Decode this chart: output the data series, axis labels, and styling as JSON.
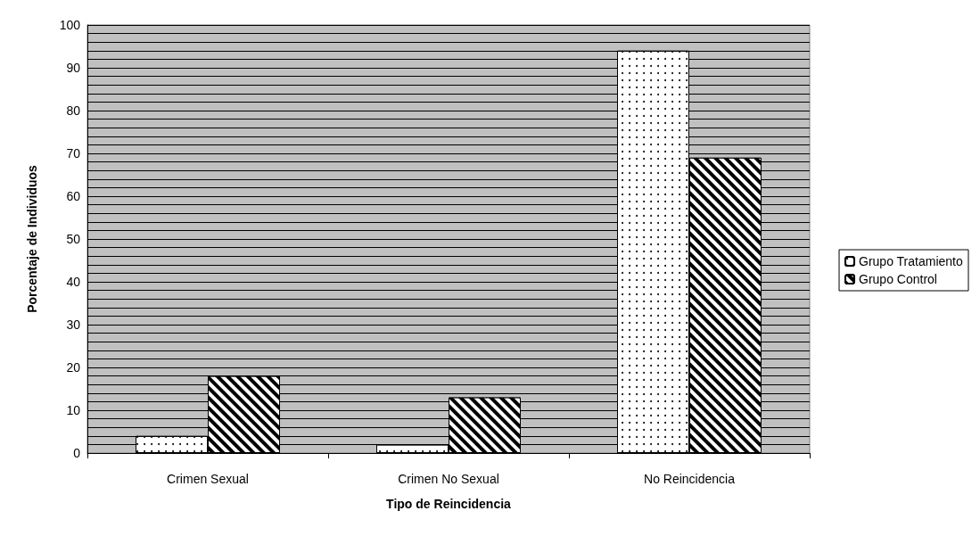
{
  "chart_data": {
    "type": "bar",
    "xlabel": "Tipo de Reincidencia",
    "ylabel": "Porcentaje de Individuos",
    "categories": [
      "Crimen Sexual",
      "Crimen No Sexual",
      "No Reincidencia"
    ],
    "series": [
      {
        "name": "Grupo Tratamiento",
        "color": "#ffffff",
        "values": [
          4,
          2,
          94
        ]
      },
      {
        "name": "Grupo Control",
        "color": "#000000",
        "values": [
          18,
          13,
          69
        ]
      }
    ],
    "ylim": [
      0,
      100
    ],
    "yticks": [
      0,
      {
        "value": 2,
        "label": null
      },
      {
        "value": 4,
        "label": null
      },
      {
        "value": 6,
        "label": null
      },
      {
        "value": 8,
        "label": null
      },
      10,
      {
        "value": 12,
        "label": null
      },
      {
        "value": 14,
        "label": null
      },
      {
        "value": 16,
        "label": null
      },
      {
        "value": 18,
        "label": null
      },
      20,
      {
        "value": 22,
        "label": null
      },
      {
        "value": 24,
        "label": null
      },
      {
        "value": 26,
        "label": null
      },
      {
        "value": 28,
        "label": null
      },
      30,
      {
        "value": 32,
        "label": null
      },
      {
        "value": 34,
        "label": null
      },
      {
        "value": 36,
        "label": null
      },
      {
        "value": 38,
        "label": null
      },
      40,
      {
        "value": 42,
        "label": null
      },
      {
        "value": 44,
        "label": null
      },
      {
        "value": 46,
        "label": null
      },
      {
        "value": 48,
        "label": null
      },
      50,
      {
        "value": 52,
        "label": null
      },
      {
        "value": 54,
        "label": null
      },
      {
        "value": 56,
        "label": null
      },
      {
        "value": 58,
        "label": null
      },
      60,
      {
        "value": 62,
        "label": null
      },
      {
        "value": 64,
        "label": null
      },
      {
        "value": 66,
        "label": null
      },
      {
        "value": 68,
        "label": null
      },
      70,
      {
        "value": 72,
        "label": null
      },
      {
        "value": 74,
        "label": null
      },
      {
        "value": 76,
        "label": null
      },
      {
        "value": 78,
        "label": null
      },
      80,
      {
        "value": 82,
        "label": null
      },
      {
        "value": 84,
        "label": null
      },
      {
        "value": 86,
        "label": null
      },
      {
        "value": 88,
        "label": null
      },
      90,
      {
        "value": 92,
        "label": null
      },
      {
        "value": 94,
        "label": null
      },
      {
        "value": 96,
        "label": null
      },
      {
        "value": 98,
        "label": null
      },
      100
    ],
    "grid": "y",
    "legend": "right"
  }
}
